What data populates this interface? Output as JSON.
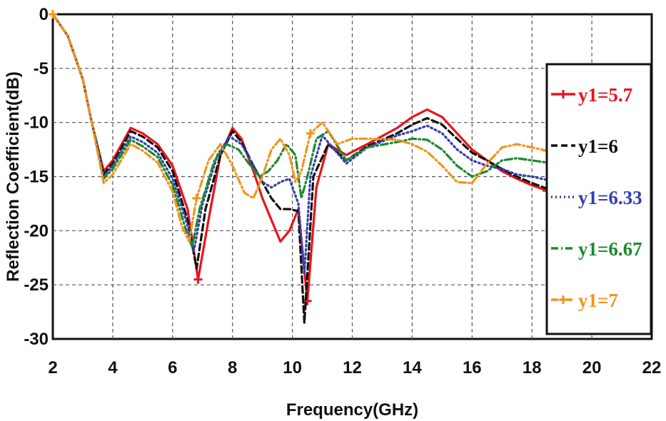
{
  "chart_data": {
    "type": "line",
    "title": "",
    "xlabel": "Frequency(GHz)",
    "ylabel": "Reflection Coefficient(dB)",
    "xlim": [
      2,
      22
    ],
    "ylim": [
      -30,
      0
    ],
    "xticks": [
      2,
      4,
      6,
      8,
      10,
      12,
      14,
      16,
      18,
      20,
      22
    ],
    "yticks": [
      0,
      -5,
      -10,
      -15,
      -20,
      -25,
      -30
    ],
    "grid": true,
    "legend_position": "right",
    "series": [
      {
        "name": "y1=5.7",
        "color": "#e8141b",
        "style": "solid",
        "marker": "plus",
        "x": [
          2,
          2.5,
          3,
          3.3,
          3.7,
          4,
          4.6,
          5,
          5.5,
          6,
          6.5,
          6.85,
          7.2,
          7.6,
          8,
          8.3,
          8.7,
          9,
          9.3,
          9.6,
          9.9,
          10.2,
          10.5,
          10.8,
          11.2,
          11.8,
          12.5,
          13.5,
          14,
          14.5,
          15,
          15.5,
          16,
          16.5,
          17,
          17.5,
          18,
          18.5
        ],
        "y": [
          0,
          -2,
          -6,
          -10,
          -14.5,
          -13.5,
          -10.5,
          -11,
          -12,
          -14,
          -18,
          -24.5,
          -19,
          -13,
          -10.5,
          -11.5,
          -14.5,
          -17,
          -19,
          -21,
          -20,
          -18,
          -26.5,
          -16,
          -12,
          -13,
          -12,
          -10.5,
          -9.5,
          -8.8,
          -9.5,
          -11,
          -12.5,
          -13.5,
          -14.5,
          -15.2,
          -15.8,
          -16.3
        ]
      },
      {
        "name": "y1=6",
        "color": "#111111",
        "style": "dashed",
        "marker": "none",
        "x": [
          2,
          2.5,
          3,
          3.3,
          3.7,
          4,
          4.6,
          5,
          5.5,
          6,
          6.5,
          6.8,
          7.1,
          7.6,
          8,
          8.3,
          8.7,
          9,
          9.3,
          9.6,
          9.9,
          10.2,
          10.4,
          10.7,
          11.2,
          11.8,
          12.5,
          13.5,
          14,
          14.5,
          15,
          15.5,
          16,
          16.5,
          17,
          17.5,
          18,
          18.5
        ],
        "y": [
          0,
          -2,
          -6,
          -10,
          -14.8,
          -13.8,
          -10.8,
          -11.3,
          -12.3,
          -14.5,
          -19,
          -23.5,
          -18,
          -13,
          -10.8,
          -11.8,
          -14,
          -15.5,
          -17,
          -18,
          -18,
          -18.2,
          -28.5,
          -15,
          -12,
          -13.5,
          -12.2,
          -11,
          -10.2,
          -9.6,
          -10.2,
          -11.5,
          -12.8,
          -13.5,
          -14.3,
          -15,
          -15.6,
          -16.1
        ]
      },
      {
        "name": "y1=6.33",
        "color": "#3340b0",
        "style": "dotted",
        "marker": "none",
        "x": [
          2,
          2.5,
          3,
          3.3,
          3.7,
          4,
          4.6,
          5,
          5.5,
          6,
          6.5,
          6.7,
          7,
          7.5,
          7.9,
          8.3,
          8.7,
          9,
          9.3,
          9.6,
          9.9,
          10.2,
          10.4,
          10.6,
          11,
          11.8,
          12.5,
          13.5,
          14,
          14.5,
          15,
          15.5,
          16,
          16.5,
          17,
          17.5,
          18,
          18.5
        ],
        "y": [
          0,
          -2,
          -6,
          -10,
          -15,
          -14,
          -11.3,
          -11.8,
          -12.8,
          -15.2,
          -19.5,
          -22,
          -17.5,
          -13,
          -11.3,
          -12,
          -14,
          -15.5,
          -16,
          -15.5,
          -15.2,
          -17.5,
          -24,
          -15,
          -11.2,
          -13.8,
          -12.3,
          -11.2,
          -10.8,
          -10.3,
          -11,
          -12.5,
          -13.5,
          -14,
          -14.3,
          -14.8,
          -15,
          -15.3
        ]
      },
      {
        "name": "y1=6.67",
        "color": "#1b8a2e",
        "style": "dashdot",
        "marker": "none",
        "x": [
          2,
          2.5,
          3,
          3.3,
          3.7,
          4,
          4.6,
          5,
          5.5,
          6,
          6.4,
          6.65,
          6.9,
          7.4,
          7.8,
          8.2,
          8.6,
          8.9,
          9.2,
          9.5,
          9.8,
          10.1,
          10.3,
          10.5,
          10.8,
          11.2,
          11.8,
          12.5,
          13.5,
          14,
          14.5,
          15,
          15.5,
          16,
          16.5,
          17,
          17.5,
          18,
          18.5
        ],
        "y": [
          0,
          -2,
          -6,
          -10,
          -15.2,
          -14.3,
          -11.6,
          -12.2,
          -13.2,
          -15.8,
          -19.5,
          -21.5,
          -18,
          -13.5,
          -12,
          -12.5,
          -14,
          -15,
          -14.5,
          -13.5,
          -12,
          -13,
          -17,
          -15,
          -11.5,
          -10.8,
          -13.5,
          -12.3,
          -11.8,
          -11.5,
          -11.6,
          -12.5,
          -14,
          -15,
          -14.5,
          -13.5,
          -13.3,
          -13.5,
          -13.7
        ]
      },
      {
        "name": "y1=7",
        "color": "#f2941e",
        "style": "dashdot",
        "marker": "plus",
        "x": [
          2,
          2.5,
          3,
          3.3,
          3.7,
          4,
          4.6,
          5,
          5.5,
          6,
          6.3,
          6.55,
          6.8,
          7.2,
          7.6,
          8,
          8.4,
          8.7,
          9,
          9.3,
          9.6,
          9.9,
          10.1,
          10.3,
          10.6,
          11,
          11.5,
          12,
          12.5,
          13.5,
          14,
          14.5,
          15,
          15.5,
          16,
          16.5,
          17,
          17.5,
          18,
          18.5
        ],
        "y": [
          0,
          -2,
          -6,
          -10,
          -15.6,
          -14.8,
          -12,
          -12.6,
          -13.7,
          -16.4,
          -19.5,
          -21,
          -17,
          -13.5,
          -12,
          -14,
          -16.5,
          -17,
          -15,
          -12.5,
          -11.5,
          -13,
          -15.5,
          -14.5,
          -11,
          -10,
          -12,
          -11.5,
          -11.5,
          -11.6,
          -12,
          -12.7,
          -14,
          -15.5,
          -15.6,
          -13.8,
          -12.3,
          -12,
          -12.3,
          -12.6
        ]
      }
    ]
  }
}
